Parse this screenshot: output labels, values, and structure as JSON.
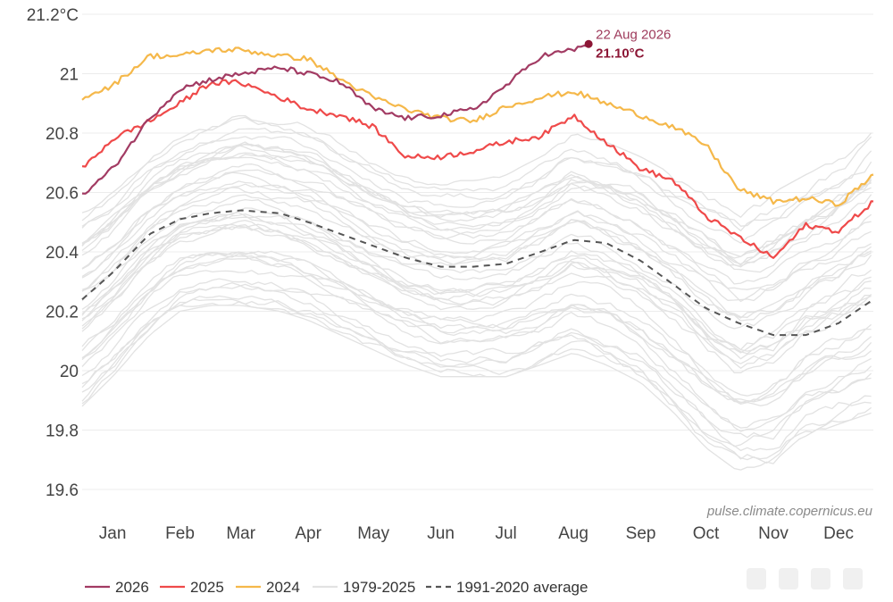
{
  "chart_data": {
    "type": "line",
    "ylim": [
      19.6,
      21.2
    ],
    "y_ticks": [
      "21.2°C",
      "21",
      "20.8",
      "20.6",
      "20.4",
      "20.2",
      "20",
      "19.8",
      "19.6"
    ],
    "y_tick_values": [
      21.2,
      21.0,
      20.8,
      20.6,
      20.4,
      20.2,
      20.0,
      19.8,
      19.6
    ],
    "x_ticks": [
      "Jan",
      "Feb",
      "Mar",
      "Apr",
      "May",
      "Jun",
      "Jul",
      "Aug",
      "Sep",
      "Oct",
      "Nov",
      "Dec"
    ],
    "x_tick_days": [
      15,
      46,
      74,
      105,
      135,
      166,
      196,
      227,
      258,
      288,
      319,
      349
    ],
    "grid": true,
    "legend_position": "bottom-left",
    "source": "pulse.climate.copernicus.eu",
    "annotation": {
      "date": "22 Aug 2026",
      "value_label": "21.10°C",
      "day": 234,
      "value": 21.1
    },
    "series": [
      {
        "name": "2026",
        "color": "#a23b63",
        "style": "solid",
        "x": [
          1,
          15,
          32,
          46,
          60,
          74,
          92,
          105,
          120,
          135,
          150,
          166,
          181,
          196,
          212,
          227,
          234
        ],
        "y": [
          20.59,
          20.68,
          20.85,
          20.95,
          20.98,
          21.0,
          21.02,
          21.0,
          20.97,
          20.88,
          20.85,
          20.86,
          20.88,
          20.96,
          21.06,
          21.08,
          21.1
        ]
      },
      {
        "name": "2025",
        "color": "#ef4a4a",
        "style": "solid",
        "x": [
          1,
          15,
          32,
          46,
          60,
          74,
          92,
          105,
          120,
          135,
          150,
          166,
          181,
          196,
          212,
          227,
          242,
          258,
          273,
          288,
          303,
          319,
          334,
          349,
          365
        ],
        "y": [
          20.68,
          20.78,
          20.84,
          20.9,
          20.97,
          20.97,
          20.92,
          20.88,
          20.86,
          20.82,
          20.72,
          20.72,
          20.74,
          20.77,
          20.79,
          20.86,
          20.77,
          20.68,
          20.64,
          20.52,
          20.45,
          20.38,
          20.49,
          20.47,
          20.57
        ]
      },
      {
        "name": "2024",
        "color": "#f5b84a",
        "style": "solid",
        "x": [
          1,
          15,
          32,
          46,
          60,
          74,
          92,
          105,
          120,
          135,
          150,
          166,
          181,
          196,
          212,
          227,
          242,
          258,
          273,
          288,
          303,
          319,
          334,
          349,
          365
        ],
        "y": [
          20.92,
          20.96,
          21.06,
          21.06,
          21.08,
          21.08,
          21.06,
          21.05,
          20.98,
          20.92,
          20.88,
          20.85,
          20.84,
          20.89,
          20.92,
          20.94,
          20.9,
          20.86,
          20.82,
          20.76,
          20.61,
          20.57,
          20.58,
          20.56,
          20.66
        ]
      },
      {
        "name": "1991-2020 average",
        "color": "#555555",
        "style": "dashed",
        "x": [
          1,
          15,
          32,
          46,
          60,
          74,
          92,
          105,
          120,
          135,
          150,
          166,
          181,
          196,
          212,
          227,
          242,
          258,
          273,
          288,
          303,
          319,
          334,
          349,
          365
        ],
        "y": [
          20.24,
          20.33,
          20.46,
          20.51,
          20.53,
          20.54,
          20.53,
          20.5,
          20.46,
          20.42,
          20.38,
          20.35,
          20.35,
          20.36,
          20.4,
          20.44,
          20.43,
          20.37,
          20.29,
          20.21,
          20.16,
          20.12,
          20.12,
          20.16,
          20.24
        ]
      }
    ],
    "background_band": {
      "name": "1979-2025",
      "color": "#e2e2e2",
      "x": [
        1,
        15,
        32,
        46,
        60,
        74,
        92,
        105,
        120,
        135,
        150,
        166,
        181,
        196,
        212,
        227,
        242,
        258,
        273,
        288,
        303,
        319,
        334,
        349,
        365
      ],
      "low": [
        19.88,
        19.98,
        20.12,
        20.2,
        20.22,
        20.22,
        20.2,
        20.17,
        20.12,
        20.07,
        20.02,
        19.98,
        19.98,
        19.98,
        20.02,
        20.06,
        20.02,
        19.96,
        19.86,
        19.74,
        19.66,
        19.68,
        19.78,
        19.82,
        19.86
      ],
      "high": [
        20.55,
        20.62,
        20.74,
        20.8,
        20.84,
        20.88,
        20.86,
        20.84,
        20.78,
        20.72,
        20.66,
        20.64,
        20.64,
        20.66,
        20.72,
        20.8,
        20.77,
        20.72,
        20.66,
        20.6,
        20.54,
        20.6,
        20.66,
        20.73,
        20.83
      ]
    }
  },
  "legend": {
    "items": [
      {
        "label": "2026",
        "color": "#a23b63",
        "style": "solid"
      },
      {
        "label": "2025",
        "color": "#ef4a4a",
        "style": "solid"
      },
      {
        "label": "2024",
        "color": "#f5b84a",
        "style": "solid"
      },
      {
        "label": "1979-2025",
        "color": "#e2e2e2",
        "style": "solid"
      },
      {
        "label": "1991-2020 average",
        "color": "#555555",
        "style": "dashed"
      }
    ]
  }
}
